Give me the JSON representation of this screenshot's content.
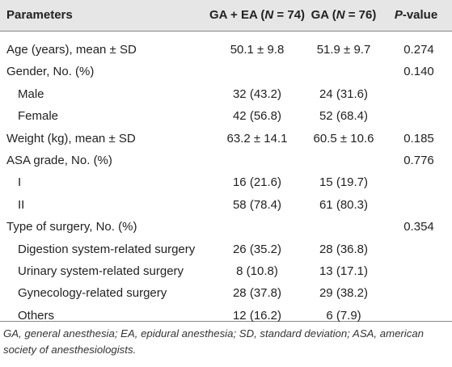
{
  "table": {
    "header": [
      [
        {
          "text": "Parameters"
        }
      ],
      [
        {
          "text": "GA + EA ("
        },
        {
          "text": "N",
          "italic": true
        },
        {
          "text": " = 74)"
        }
      ],
      [
        {
          "text": "GA ("
        },
        {
          "text": "N",
          "italic": true
        },
        {
          "text": " = 76)"
        }
      ],
      [
        {
          "text": "P",
          "italic": true
        },
        {
          "text": "-value"
        }
      ]
    ],
    "rows": [
      {
        "label": "Age (years), mean ± SD",
        "ga_ea": "50.1 ± 9.8",
        "ga": "51.9 ± 9.7",
        "p": "0.274"
      },
      {
        "label": "Gender, No. (%)",
        "p": "0.140"
      },
      {
        "label": "Male",
        "ga_ea": "32 (43.2)",
        "ga": "24 (31.6)",
        "indent": true
      },
      {
        "label": "Female",
        "ga_ea": "42 (56.8)",
        "ga": "52 (68.4)",
        "indent": true
      },
      {
        "label": "Weight (kg), mean ± SD",
        "ga_ea": "63.2 ± 14.1",
        "ga": "60.5 ± 10.6",
        "p": "0.185"
      },
      {
        "label": "ASA grade, No. (%)",
        "p": "0.776"
      },
      {
        "label": "I",
        "ga_ea": "16 (21.6)",
        "ga": "15 (19.7)",
        "indent": true
      },
      {
        "label": "II",
        "ga_ea": "58 (78.4)",
        "ga": "61 (80.3)",
        "indent": true
      },
      {
        "label": "Type of surgery, No. (%)",
        "p": "0.354"
      },
      {
        "label": "Digestion system-related surgery",
        "ga_ea": "26 (35.2)",
        "ga": "28 (36.8)",
        "indent": true
      },
      {
        "label": "Urinary system-related surgery",
        "ga_ea": "8 (10.8)",
        "ga": "13 (17.1)",
        "indent": true
      },
      {
        "label": "Gynecology-related surgery",
        "ga_ea": "28 (37.8)",
        "ga": "29 (38.2)",
        "indent": true
      },
      {
        "label": "Others",
        "ga_ea": "12 (16.2)",
        "ga": "6 (7.9)",
        "indent": true
      }
    ],
    "footnote": "GA, general anesthesia; EA, epidural anesthesia; SD, standard deviation; ASA, american society of anesthesiologists."
  }
}
